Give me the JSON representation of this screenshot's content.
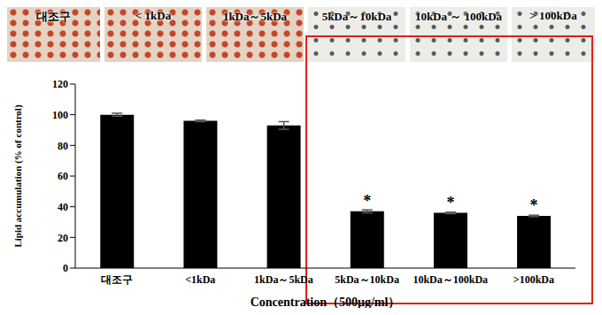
{
  "chart_data": {
    "type": "bar",
    "image_labels": [
      "대조구",
      "< 1kDa",
      "1kDa～5kDa",
      "5kDa～10kDa",
      "10kDa ～ 100kDa",
      "> 100kDa"
    ],
    "categories": [
      "대조구",
      "<1kDa",
      "1kDa～5kDa",
      "5kDa～10kDa",
      "10kDa～100kDa",
      ">100kDa"
    ],
    "values": [
      100,
      96,
      93,
      37,
      36,
      34
    ],
    "errors": [
      1,
      0.5,
      2.5,
      1,
      0.5,
      0.5
    ],
    "annotations": [
      null,
      null,
      null,
      "*",
      "*",
      "*"
    ],
    "y_label": "Lipid accumulation (% of control)",
    "x_label": "Concentration（500μg/ml）",
    "ylim": [
      0,
      120
    ],
    "yticks": [
      0,
      20,
      40,
      60,
      80,
      100,
      120
    ],
    "color": "#000000"
  }
}
